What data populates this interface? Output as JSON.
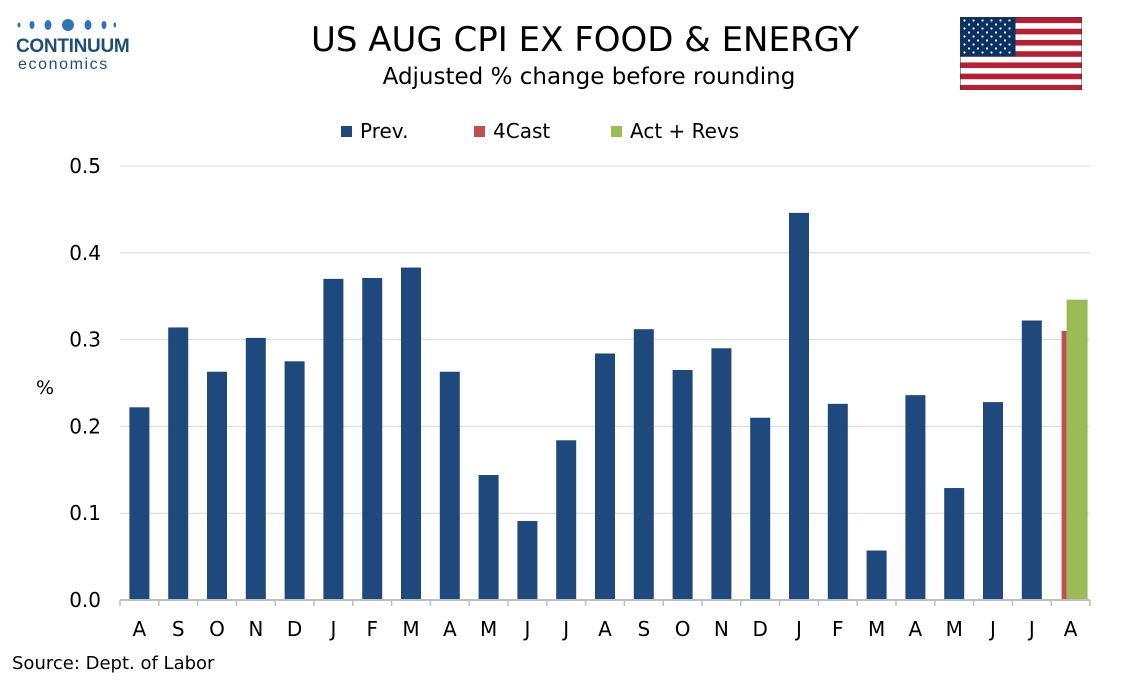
{
  "logo": {
    "line1": "CONTINUUM",
    "line2": "economics"
  },
  "header": {
    "title": "US AUG CPI EX FOOD & ENERGY",
    "subtitle": "Adjusted % change before rounding"
  },
  "source": "Source: Dept. of Labor",
  "colors": {
    "prev": "#1f497d",
    "forecast": "#c0504d",
    "actual": "#9bbb59",
    "grid": "#d9d9d9",
    "axis": "#bfbfbf"
  },
  "chart_data": {
    "type": "bar",
    "ylabel": "%",
    "ylim": [
      0,
      0.5
    ],
    "yticks": [
      "0.0",
      "0.1",
      "0.2",
      "0.3",
      "0.4",
      "0.5"
    ],
    "grid": true,
    "legend_position": "top",
    "categories": [
      "A",
      "S",
      "O",
      "N",
      "D",
      "J",
      "F",
      "M",
      "A",
      "M",
      "J",
      "J",
      "A",
      "S",
      "O",
      "N",
      "D",
      "J",
      "F",
      "M",
      "A",
      "M",
      "J",
      "J",
      "A"
    ],
    "series": [
      {
        "name": "Prev.",
        "values": [
          0.222,
          0.314,
          0.263,
          0.302,
          0.275,
          0.37,
          0.371,
          0.383,
          0.263,
          0.144,
          0.091,
          0.184,
          0.284,
          0.312,
          0.265,
          0.29,
          0.21,
          0.446,
          0.226,
          0.057,
          0.236,
          0.129,
          0.228,
          0.322,
          null
        ]
      },
      {
        "name": "4Cast",
        "values": [
          null,
          null,
          null,
          null,
          null,
          null,
          null,
          null,
          null,
          null,
          null,
          null,
          null,
          null,
          null,
          null,
          null,
          null,
          null,
          null,
          null,
          null,
          null,
          null,
          0.31
        ]
      },
      {
        "name": "Act + Revs",
        "values": [
          null,
          null,
          null,
          null,
          null,
          null,
          null,
          null,
          null,
          null,
          null,
          null,
          null,
          null,
          null,
          null,
          null,
          null,
          null,
          null,
          null,
          null,
          null,
          null,
          0.346
        ]
      }
    ]
  }
}
